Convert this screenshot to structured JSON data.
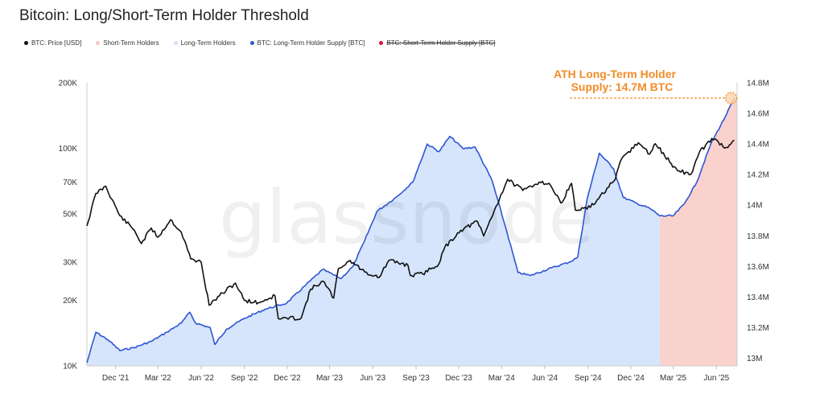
{
  "title": "Bitcoin: Long/Short-Term Holder Threshold",
  "legend": [
    {
      "label": "BTC: Price [USD]",
      "color": "#111111",
      "active": true
    },
    {
      "label": "Short-Term Holders",
      "color": "#f7c6c0",
      "active": true
    },
    {
      "label": "Long-Term Holders",
      "color": "#cfe0fb",
      "active": true
    },
    {
      "label": "BTC: Long-Term Holder Supply [BTC]",
      "color": "#2f55d4",
      "active": true
    },
    {
      "label": "BTC: Short-Term Holder Supply [BTC]",
      "color": "#e0103a",
      "active": false
    }
  ],
  "watermark": "glassnode",
  "annotation": {
    "line1": "ATH Long-Term Holder",
    "line2": "Supply: 14.7M BTC"
  },
  "chart_data": {
    "type": "line",
    "x_ticks": [
      "Dec '21",
      "Mar '22",
      "Jun '22",
      "Sep '22",
      "Dec '22",
      "Mar '23",
      "Jun '23",
      "Sep '23",
      "Dec '23",
      "Mar '24",
      "Jun '24",
      "Sep '24",
      "Dec '24",
      "Mar '25",
      "Jun '25"
    ],
    "x_range": [
      "2021-10-01",
      "2025-07-15"
    ],
    "y_left": {
      "scale": "log",
      "range": [
        10000,
        200000
      ],
      "ticks": [
        10000,
        20000,
        30000,
        50000,
        70000,
        100000,
        200000
      ],
      "tick_labels": [
        "10K",
        "20K",
        "30K",
        "50K",
        "70K",
        "100K",
        "200K"
      ]
    },
    "y_right": {
      "scale": "linear",
      "range": [
        12950000,
        14800000
      ],
      "ticks": [
        13000000,
        13200000,
        13400000,
        13600000,
        13800000,
        14000000,
        14200000,
        14400000,
        14600000,
        14800000
      ],
      "tick_labels": [
        "13M",
        "13.2M",
        "13.4M",
        "13.6M",
        "13.8M",
        "14M",
        "14.2M",
        "14.4M",
        "14.6M",
        "14.8M"
      ]
    },
    "grid": false,
    "legend_position": "top",
    "regimes": [
      {
        "name": "Long-Term Holders",
        "start": "2021-10-01",
        "end": "2025-02-01"
      },
      {
        "name": "Short-Term Holders",
        "start": "2025-02-01",
        "end": "2025-07-15"
      }
    ],
    "series": [
      {
        "name": "BTC: Price [USD]",
        "axis": "left",
        "points": [
          [
            "2021-10-01",
            44000
          ],
          [
            "2021-10-20",
            62000
          ],
          [
            "2021-11-10",
            67000
          ],
          [
            "2021-12-10",
            49000
          ],
          [
            "2022-01-10",
            42000
          ],
          [
            "2022-01-25",
            36500
          ],
          [
            "2022-02-15",
            43000
          ],
          [
            "2022-03-01",
            39000
          ],
          [
            "2022-03-28",
            47000
          ],
          [
            "2022-04-20",
            41000
          ],
          [
            "2022-05-10",
            31000
          ],
          [
            "2022-06-01",
            30000
          ],
          [
            "2022-06-18",
            19000
          ],
          [
            "2022-07-10",
            21000
          ],
          [
            "2022-08-13",
            24000
          ],
          [
            "2022-09-01",
            20000
          ],
          [
            "2022-10-01",
            19500
          ],
          [
            "2022-11-05",
            21000
          ],
          [
            "2022-11-12",
            16500
          ],
          [
            "2022-12-31",
            16600
          ],
          [
            "2023-01-20",
            22500
          ],
          [
            "2023-02-15",
            24500
          ],
          [
            "2023-03-10",
            20500
          ],
          [
            "2023-03-20",
            28000
          ],
          [
            "2023-04-14",
            30500
          ],
          [
            "2023-05-15",
            27000
          ],
          [
            "2023-06-15",
            25500
          ],
          [
            "2023-07-05",
            30500
          ],
          [
            "2023-08-15",
            29000
          ],
          [
            "2023-08-20",
            26000
          ],
          [
            "2023-09-15",
            26500
          ],
          [
            "2023-10-20",
            29500
          ],
          [
            "2023-11-01",
            35000
          ],
          [
            "2023-12-05",
            42000
          ],
          [
            "2024-01-10",
            46000
          ],
          [
            "2024-01-23",
            39500
          ],
          [
            "2024-02-15",
            52000
          ],
          [
            "2024-03-14",
            72000
          ],
          [
            "2024-04-15",
            64000
          ],
          [
            "2024-05-20",
            70000
          ],
          [
            "2024-06-10",
            69000
          ],
          [
            "2024-07-05",
            56000
          ],
          [
            "2024-07-28",
            69000
          ],
          [
            "2024-08-05",
            52000
          ],
          [
            "2024-09-06",
            53500
          ],
          [
            "2024-10-29",
            72000
          ],
          [
            "2024-11-12",
            90000
          ],
          [
            "2024-12-17",
            106000
          ],
          [
            "2025-01-10",
            94000
          ],
          [
            "2025-01-22",
            105000
          ],
          [
            "2025-02-25",
            85000
          ],
          [
            "2025-03-10",
            79000
          ],
          [
            "2025-04-08",
            76000
          ],
          [
            "2025-04-25",
            95000
          ],
          [
            "2025-05-22",
            111000
          ],
          [
            "2025-06-22",
            101000
          ],
          [
            "2025-07-09",
            109000
          ]
        ]
      },
      {
        "name": "BTC: Long-Term Holder Supply [BTC]",
        "axis": "right",
        "points": [
          [
            "2021-10-01",
            12970000
          ],
          [
            "2021-10-20",
            13170000
          ],
          [
            "2021-11-15",
            13120000
          ],
          [
            "2021-12-10",
            13050000
          ],
          [
            "2022-01-10",
            13070000
          ],
          [
            "2022-02-15",
            13110000
          ],
          [
            "2022-03-20",
            13170000
          ],
          [
            "2022-04-20",
            13230000
          ],
          [
            "2022-05-08",
            13300000
          ],
          [
            "2022-05-20",
            13230000
          ],
          [
            "2022-06-20",
            13200000
          ],
          [
            "2022-06-30",
            13090000
          ],
          [
            "2022-07-25",
            13190000
          ],
          [
            "2022-09-01",
            13260000
          ],
          [
            "2022-10-15",
            13320000
          ],
          [
            "2022-11-30",
            13360000
          ],
          [
            "2023-01-10",
            13480000
          ],
          [
            "2023-02-15",
            13580000
          ],
          [
            "2023-03-25",
            13520000
          ],
          [
            "2023-04-20",
            13600000
          ],
          [
            "2023-05-15",
            13770000
          ],
          [
            "2023-06-10",
            13960000
          ],
          [
            "2023-07-20",
            14050000
          ],
          [
            "2023-08-25",
            14150000
          ],
          [
            "2023-09-25",
            14400000
          ],
          [
            "2023-10-20",
            14350000
          ],
          [
            "2023-11-12",
            14450000
          ],
          [
            "2023-12-10",
            14370000
          ],
          [
            "2024-01-05",
            14380000
          ],
          [
            "2024-02-10",
            14160000
          ],
          [
            "2024-03-10",
            13850000
          ],
          [
            "2024-04-05",
            13560000
          ],
          [
            "2024-05-01",
            13540000
          ],
          [
            "2024-06-15",
            13590000
          ],
          [
            "2024-07-25",
            13630000
          ],
          [
            "2024-08-10",
            13660000
          ],
          [
            "2024-08-30",
            14040000
          ],
          [
            "2024-09-25",
            14340000
          ],
          [
            "2024-10-25",
            14240000
          ],
          [
            "2024-11-15",
            14050000
          ],
          [
            "2024-12-15",
            14010000
          ],
          [
            "2025-01-10",
            13980000
          ],
          [
            "2025-02-01",
            13930000
          ],
          [
            "2025-03-01",
            13930000
          ],
          [
            "2025-03-25",
            14010000
          ],
          [
            "2025-04-20",
            14150000
          ],
          [
            "2025-05-20",
            14400000
          ],
          [
            "2025-06-20",
            14580000
          ],
          [
            "2025-07-09",
            14700000
          ]
        ]
      }
    ]
  }
}
